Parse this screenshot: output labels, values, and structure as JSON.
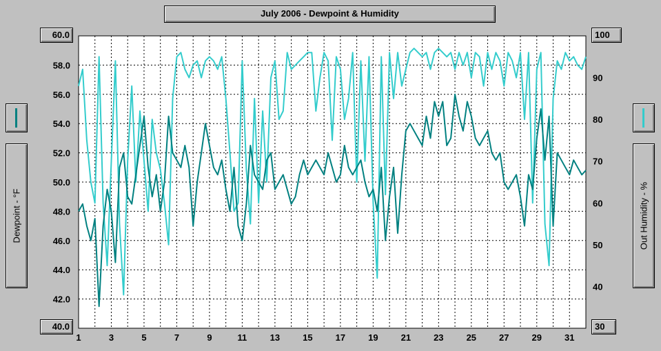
{
  "title": "July 2006 - Dewpoint & Humidity",
  "left_axis_label": "Dewpoint - °F",
  "right_axis_label": "Out Humidity - %",
  "colors": {
    "dewpoint": "#008080",
    "humidity": "#33cccc",
    "plot_bg": "#ffffff",
    "grid": "#000000"
  },
  "chart_data": {
    "type": "line",
    "title": "July 2006 - Dewpoint & Humidity",
    "xlabel": "",
    "ylabel": "Dewpoint - °F",
    "y2label": "Out Humidity - %",
    "xlim": [
      1,
      32
    ],
    "ylim": [
      40,
      60
    ],
    "y2lim": [
      30,
      100
    ],
    "x_ticks": [
      "1",
      "3",
      "5",
      "7",
      "9",
      "11",
      "13",
      "15",
      "17",
      "19",
      "21",
      "23",
      "25",
      "27",
      "29",
      "31"
    ],
    "y_ticks": [
      "60.0",
      "58.0",
      "56.0",
      "54.0",
      "52.0",
      "50.0",
      "48.0",
      "46.0",
      "44.0",
      "42.0",
      "40.0"
    ],
    "y2_ticks": [
      "100",
      "90",
      "80",
      "70",
      "60",
      "50",
      "40",
      "30"
    ],
    "grid": true,
    "series": [
      {
        "name": "Dewpoint - °F",
        "axis": "left",
        "color": "#008080",
        "x": [
          1.0,
          1.25,
          1.5,
          1.75,
          2.0,
          2.25,
          2.5,
          2.75,
          3.0,
          3.25,
          3.5,
          3.75,
          4.0,
          4.25,
          4.5,
          4.75,
          5.0,
          5.25,
          5.5,
          5.75,
          6.0,
          6.25,
          6.5,
          6.75,
          7.0,
          7.25,
          7.5,
          7.75,
          8.0,
          8.25,
          8.5,
          8.75,
          9.0,
          9.25,
          9.5,
          9.75,
          10.0,
          10.25,
          10.5,
          10.75,
          11.0,
          11.25,
          11.5,
          11.75,
          12.0,
          12.25,
          12.5,
          12.75,
          13.0,
          13.25,
          13.5,
          13.75,
          14.0,
          14.25,
          14.5,
          14.75,
          15.0,
          15.25,
          15.5,
          15.75,
          16.0,
          16.25,
          16.5,
          16.75,
          17.0,
          17.25,
          17.5,
          17.75,
          18.0,
          18.25,
          18.5,
          18.75,
          19.0,
          19.25,
          19.5,
          19.75,
          20.0,
          20.25,
          20.5,
          20.75,
          21.0,
          21.25,
          21.5,
          21.75,
          22.0,
          22.25,
          22.5,
          22.75,
          23.0,
          23.25,
          23.5,
          23.75,
          24.0,
          24.25,
          24.5,
          24.75,
          25.0,
          25.25,
          25.5,
          25.75,
          26.0,
          26.25,
          26.5,
          26.75,
          27.0,
          27.25,
          27.5,
          27.75,
          28.0,
          28.25,
          28.5,
          28.75,
          29.0,
          29.25,
          29.5,
          29.75,
          30.0,
          30.25,
          30.5,
          30.75,
          31.0,
          31.25,
          31.5,
          31.75,
          32.0
        ],
        "values": [
          48.0,
          48.5,
          47.0,
          46.0,
          47.5,
          41.5,
          47.0,
          49.5,
          48.0,
          44.5,
          51.0,
          52.0,
          49.0,
          48.5,
          50.5,
          52.5,
          54.5,
          51.0,
          49.0,
          50.5,
          48.0,
          50.0,
          54.5,
          52.0,
          51.5,
          51.0,
          52.5,
          51.0,
          47.0,
          50.0,
          52.0,
          54.0,
          52.5,
          51.0,
          50.5,
          51.5,
          49.5,
          48.0,
          51.0,
          47.0,
          46.0,
          48.5,
          52.5,
          50.5,
          50.0,
          49.5,
          51.5,
          52.0,
          49.5,
          50.0,
          50.5,
          49.5,
          48.5,
          49.0,
          50.5,
          51.5,
          50.5,
          51.0,
          51.5,
          51.0,
          50.5,
          52.0,
          51.0,
          50.0,
          50.5,
          52.5,
          51.0,
          50.5,
          51.0,
          51.5,
          50.0,
          49.0,
          49.5,
          48.0,
          51.0,
          46.0,
          49.0,
          51.0,
          46.5,
          50.5,
          53.5,
          54.0,
          53.5,
          53.0,
          52.5,
          54.5,
          53.0,
          55.5,
          54.5,
          55.5,
          52.5,
          53.0,
          56.0,
          54.5,
          53.5,
          55.5,
          54.5,
          53.0,
          52.5,
          53.0,
          53.5,
          52.0,
          51.5,
          52.0,
          50.0,
          49.5,
          50.0,
          50.5,
          49.0,
          47.0,
          50.5,
          49.5,
          53.0,
          55.0,
          51.5,
          54.5,
          47.0,
          52.0,
          51.5,
          51.0,
          50.5,
          51.5,
          51.0,
          50.5,
          50.8
        ]
      },
      {
        "name": "Out Humidity - %",
        "axis": "right",
        "color": "#33cccc",
        "x": [
          1.0,
          1.25,
          1.5,
          1.75,
          2.0,
          2.25,
          2.5,
          2.75,
          3.0,
          3.25,
          3.5,
          3.75,
          4.0,
          4.25,
          4.5,
          4.75,
          5.0,
          5.25,
          5.5,
          5.75,
          6.0,
          6.25,
          6.5,
          6.75,
          7.0,
          7.25,
          7.5,
          7.75,
          8.0,
          8.25,
          8.5,
          8.75,
          9.0,
          9.25,
          9.5,
          9.75,
          10.0,
          10.25,
          10.5,
          10.75,
          11.0,
          11.25,
          11.5,
          11.75,
          12.0,
          12.25,
          12.5,
          12.75,
          13.0,
          13.25,
          13.5,
          13.75,
          14.0,
          14.25,
          14.5,
          14.75,
          15.0,
          15.25,
          15.5,
          15.75,
          16.0,
          16.25,
          16.5,
          16.75,
          17.0,
          17.25,
          17.5,
          17.75,
          18.0,
          18.25,
          18.5,
          18.75,
          19.0,
          19.25,
          19.5,
          19.75,
          20.0,
          20.25,
          20.5,
          20.75,
          21.0,
          21.25,
          21.5,
          21.75,
          22.0,
          22.25,
          22.5,
          22.75,
          23.0,
          23.25,
          23.5,
          23.75,
          24.0,
          24.25,
          24.5,
          24.75,
          25.0,
          25.25,
          25.5,
          25.75,
          26.0,
          26.25,
          26.5,
          26.75,
          27.0,
          27.25,
          27.5,
          27.75,
          28.0,
          28.25,
          28.5,
          28.75,
          29.0,
          29.25,
          29.5,
          29.75,
          30.0,
          30.25,
          30.5,
          30.75,
          31.0,
          31.25,
          31.5,
          31.75,
          32.0
        ],
        "values": [
          88,
          92,
          75,
          65,
          60,
          95,
          60,
          45,
          70,
          94,
          55,
          38,
          70,
          88,
          65,
          82,
          70,
          58,
          80,
          72,
          68,
          60,
          50,
          85,
          95,
          96,
          92,
          90,
          93,
          94,
          90,
          94,
          95,
          94,
          92,
          95,
          85,
          72,
          58,
          60,
          94,
          68,
          55,
          85,
          60,
          82,
          65,
          90,
          94,
          80,
          82,
          96,
          92,
          93,
          94,
          95,
          96,
          96,
          82,
          90,
          96,
          94,
          75,
          95,
          92,
          80,
          85,
          96,
          65,
          94,
          70,
          95,
          60,
          42,
          95,
          62,
          96,
          85,
          96,
          88,
          92,
          96,
          97,
          96,
          95,
          96,
          92,
          96,
          97,
          96,
          95,
          96,
          92,
          96,
          93,
          96,
          90,
          96,
          95,
          88,
          96,
          92,
          96,
          94,
          88,
          96,
          94,
          90,
          96,
          80,
          96,
          60,
          92,
          96,
          55,
          45,
          85,
          94,
          92,
          96,
          94,
          95,
          93,
          92,
          95
        ]
      }
    ]
  }
}
